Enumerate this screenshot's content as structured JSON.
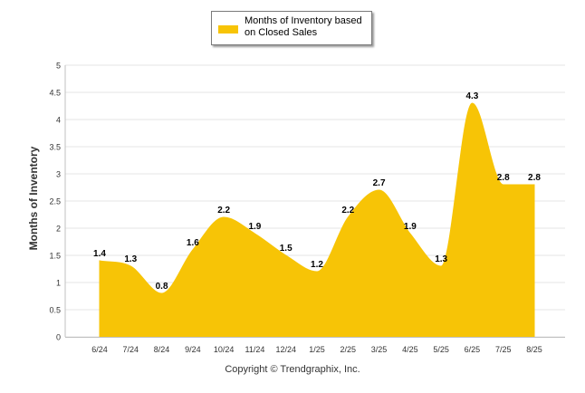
{
  "chart_data": {
    "type": "area",
    "categories": [
      "6/24",
      "7/24",
      "8/24",
      "9/24",
      "10/24",
      "11/24",
      "12/24",
      "1/25",
      "2/25",
      "3/25",
      "4/25",
      "5/25",
      "6/25",
      "7/25",
      "8/25"
    ],
    "series": [
      {
        "name": "Months of Inventory based on Closed Sales",
        "values": [
          1.4,
          1.3,
          0.8,
          1.6,
          2.2,
          1.9,
          1.5,
          1.2,
          2.2,
          2.7,
          1.9,
          1.3,
          4.3,
          2.8,
          2.8
        ],
        "color": "#F7C406"
      }
    ],
    "ylabel": "Months of Inventory",
    "ylim": [
      0,
      5
    ],
    "yticks": [
      "0",
      "0.5",
      "1",
      "1.5",
      "2",
      "2.5",
      "3",
      "3.5",
      "4",
      "4.5",
      "5"
    ],
    "grid": true,
    "legend_position": "top-center"
  },
  "copyright": "Copyright © Trendgraphix, Inc."
}
